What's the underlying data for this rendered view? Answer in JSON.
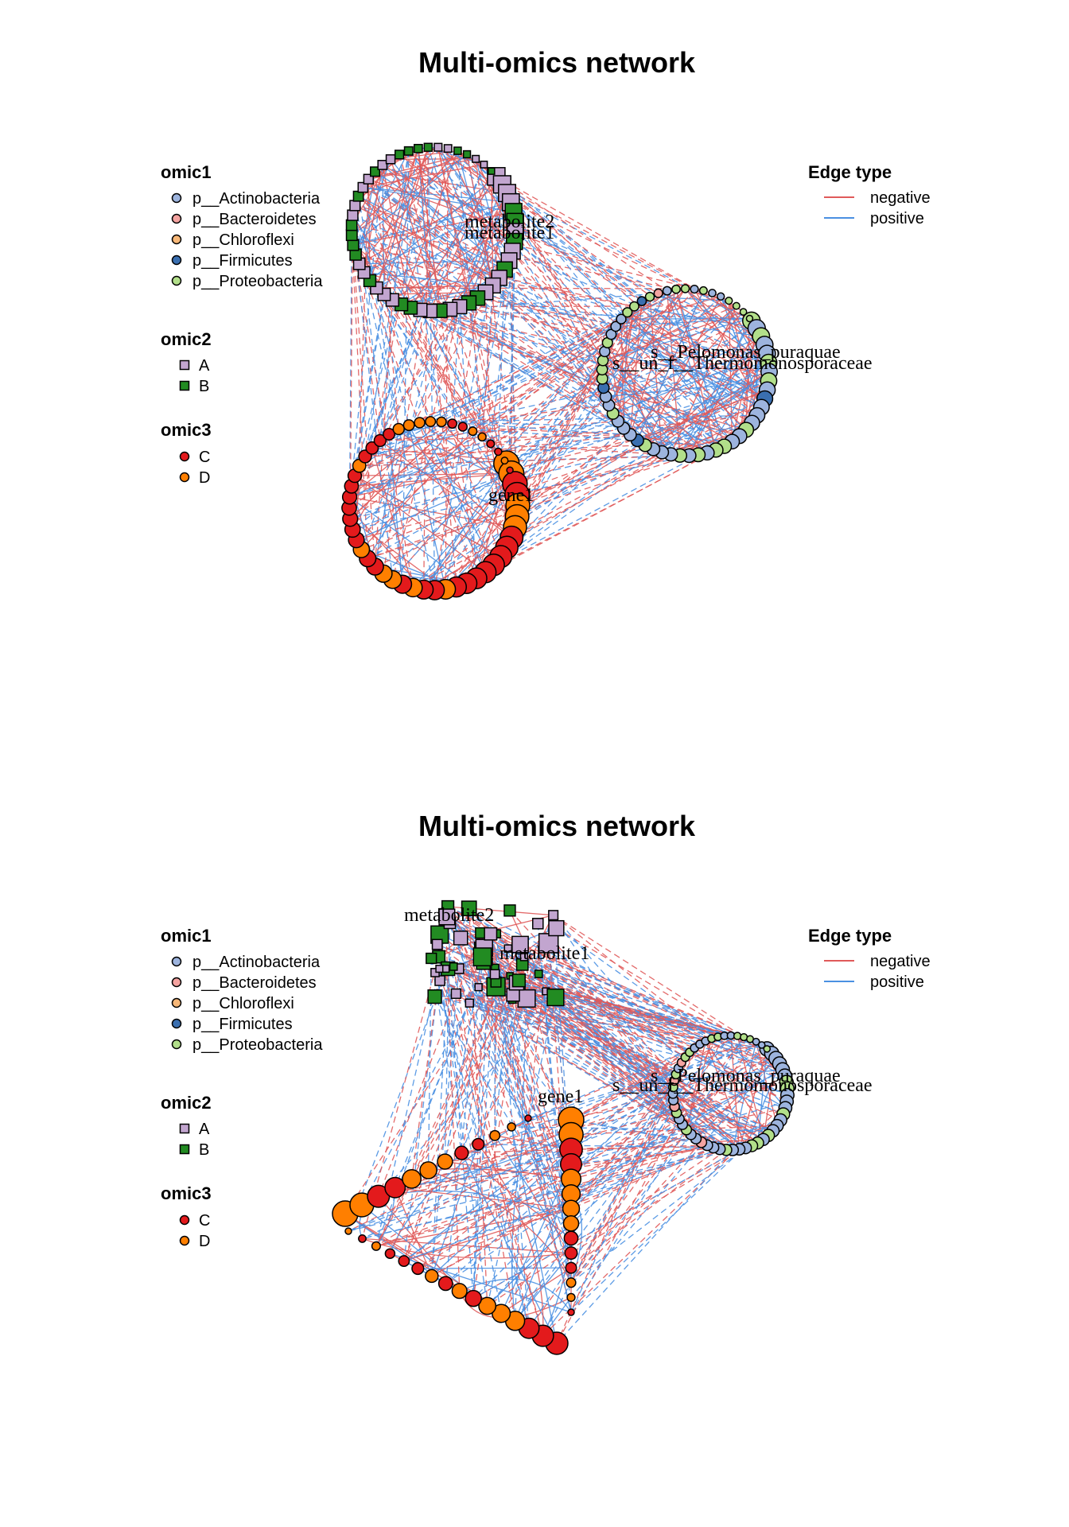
{
  "panels": [
    {
      "title": "Multi-omics network",
      "layout": "circles",
      "node_labels": [
        "metabolite2",
        "metabolite1",
        "s__Pelomonas_puraquae",
        "s__un_f__Thermomonosporaceae",
        "gene1"
      ]
    },
    {
      "title": "Multi-omics network",
      "layout": "mixed",
      "node_labels": [
        "metabolite2",
        "metabolite1",
        "s__Pelomonas_puraquae",
        "s__un_f__Thermomonosporaceae",
        "gene1"
      ]
    }
  ],
  "legends": {
    "omic1": {
      "title": "omic1",
      "items": [
        {
          "label": "p__Actinobacteria",
          "color": "#9DB4DE"
        },
        {
          "label": "p__Bacteroidetes",
          "color": "#F4A3A0"
        },
        {
          "label": "p__Chloroflexi",
          "color": "#F8B878"
        },
        {
          "label": "p__Firmicutes",
          "color": "#3A6FB0"
        },
        {
          "label": "p__Proteobacteria",
          "color": "#B2DF8A"
        }
      ]
    },
    "omic2": {
      "title": "omic2",
      "items": [
        {
          "label": "A",
          "color": "#C2A5CF"
        },
        {
          "label": "B",
          "color": "#228B22"
        }
      ]
    },
    "omic3": {
      "title": "omic3",
      "items": [
        {
          "label": "C",
          "color": "#E31A1C"
        },
        {
          "label": "D",
          "color": "#FF7F00"
        }
      ]
    },
    "edge_type": {
      "title": "Edge type",
      "items": [
        {
          "label": "negative",
          "color": "#E05A5A"
        },
        {
          "label": "positive",
          "color": "#4A90E2"
        }
      ]
    }
  }
}
